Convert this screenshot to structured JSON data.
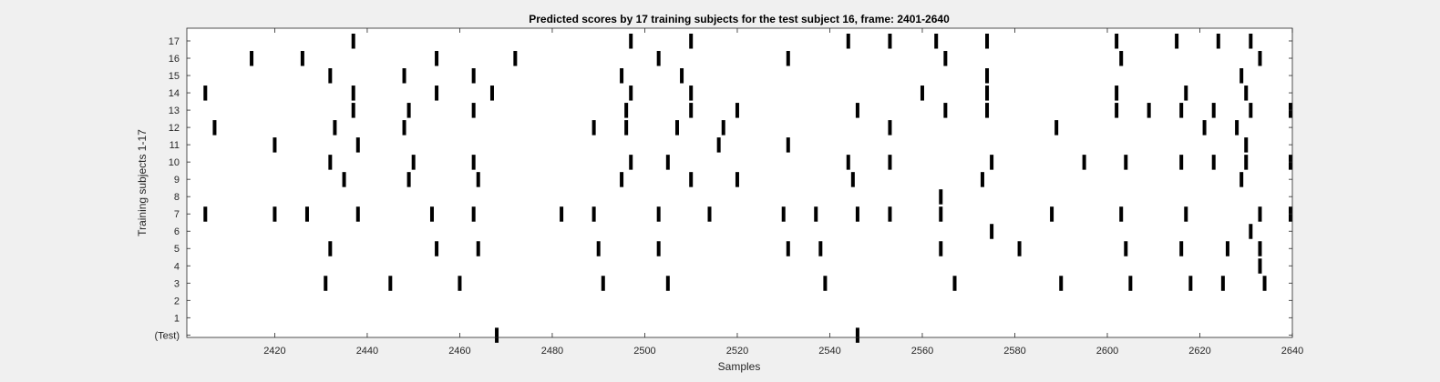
{
  "chart_data": {
    "type": "raster",
    "title": "Predicted scores by 17 training subjects for the test subject 16, frame: 2401-2640",
    "xlabel": "Samples",
    "ylabel": "Training subjects 1-17",
    "xlim": [
      2401,
      2640
    ],
    "x_ticks": [
      2420,
      2440,
      2460,
      2480,
      2500,
      2520,
      2540,
      2560,
      2580,
      2600,
      2620,
      2640
    ],
    "y_ticks": [
      "(Test)",
      "1",
      "2",
      "3",
      "4",
      "5",
      "6",
      "7",
      "8",
      "9",
      "10",
      "11",
      "12",
      "13",
      "14",
      "15",
      "16",
      "17"
    ],
    "rows": [
      {
        "label": "(Test)",
        "spikes": [
          2468,
          2546
        ]
      },
      {
        "label": "1",
        "spikes": []
      },
      {
        "label": "2",
        "spikes": []
      },
      {
        "label": "3",
        "spikes": [
          2431,
          2445,
          2460,
          2491,
          2505,
          2539,
          2567,
          2590,
          2605,
          2618,
          2625,
          2634
        ]
      },
      {
        "label": "4",
        "spikes": [
          2633
        ]
      },
      {
        "label": "5",
        "spikes": [
          2432,
          2455,
          2464,
          2490,
          2503,
          2531,
          2538,
          2564,
          2581,
          2604,
          2616,
          2626,
          2633
        ]
      },
      {
        "label": "6",
        "spikes": [
          2575,
          2631
        ]
      },
      {
        "label": "7",
        "spikes": [
          2405,
          2420,
          2427,
          2438,
          2454,
          2463,
          2482,
          2489,
          2503,
          2514,
          2530,
          2537,
          2546,
          2553,
          2564,
          2588,
          2603,
          2617,
          2633,
          2640
        ]
      },
      {
        "label": "8",
        "spikes": [
          2564
        ]
      },
      {
        "label": "9",
        "spikes": [
          2435,
          2449,
          2464,
          2495,
          2510,
          2520,
          2545,
          2573,
          2629
        ]
      },
      {
        "label": "10",
        "spikes": [
          2432,
          2450,
          2463,
          2497,
          2505,
          2544,
          2553,
          2575,
          2595,
          2604,
          2616,
          2623,
          2630,
          2640
        ]
      },
      {
        "label": "11",
        "spikes": [
          2420,
          2438,
          2516,
          2531,
          2630
        ]
      },
      {
        "label": "12",
        "spikes": [
          2407,
          2433,
          2448,
          2489,
          2496,
          2507,
          2517,
          2553,
          2589,
          2621,
          2628
        ]
      },
      {
        "label": "13",
        "spikes": [
          2437,
          2449,
          2463,
          2496,
          2510,
          2520,
          2546,
          2565,
          2574,
          2602,
          2609,
          2616,
          2623,
          2631,
          2640
        ]
      },
      {
        "label": "14",
        "spikes": [
          2405,
          2437,
          2455,
          2467,
          2497,
          2510,
          2560,
          2574,
          2602,
          2617,
          2630
        ]
      },
      {
        "label": "15",
        "spikes": [
          2432,
          2448,
          2463,
          2495,
          2508,
          2574,
          2629
        ]
      },
      {
        "label": "16",
        "spikes": [
          2415,
          2426,
          2455,
          2472,
          2503,
          2531,
          2565,
          2603,
          2633
        ]
      },
      {
        "label": "17",
        "spikes": [
          2437,
          2497,
          2510,
          2544,
          2553,
          2563,
          2574,
          2602,
          2615,
          2624,
          2631
        ]
      }
    ]
  }
}
